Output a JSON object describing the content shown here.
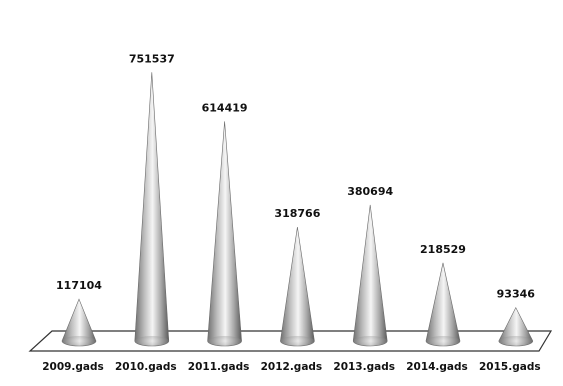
{
  "chart_data": {
    "type": "bar",
    "title": "",
    "categories": [
      "2009.gads",
      "2010.gads",
      "2011.gads",
      "2012.gads",
      "2013.gads",
      "2014.gads",
      "2015.gads"
    ],
    "values": [
      117104,
      751537,
      614419,
      318766,
      380694,
      218529,
      93346
    ],
    "ylim": [
      0,
      800000
    ],
    "grid": false,
    "legend": "none"
  },
  "colors": {
    "cone_dark": "#6f6f6f",
    "cone_mid": "#bdbdbd",
    "cone_light": "#f5f5f5",
    "floor_stroke": "#333333"
  }
}
